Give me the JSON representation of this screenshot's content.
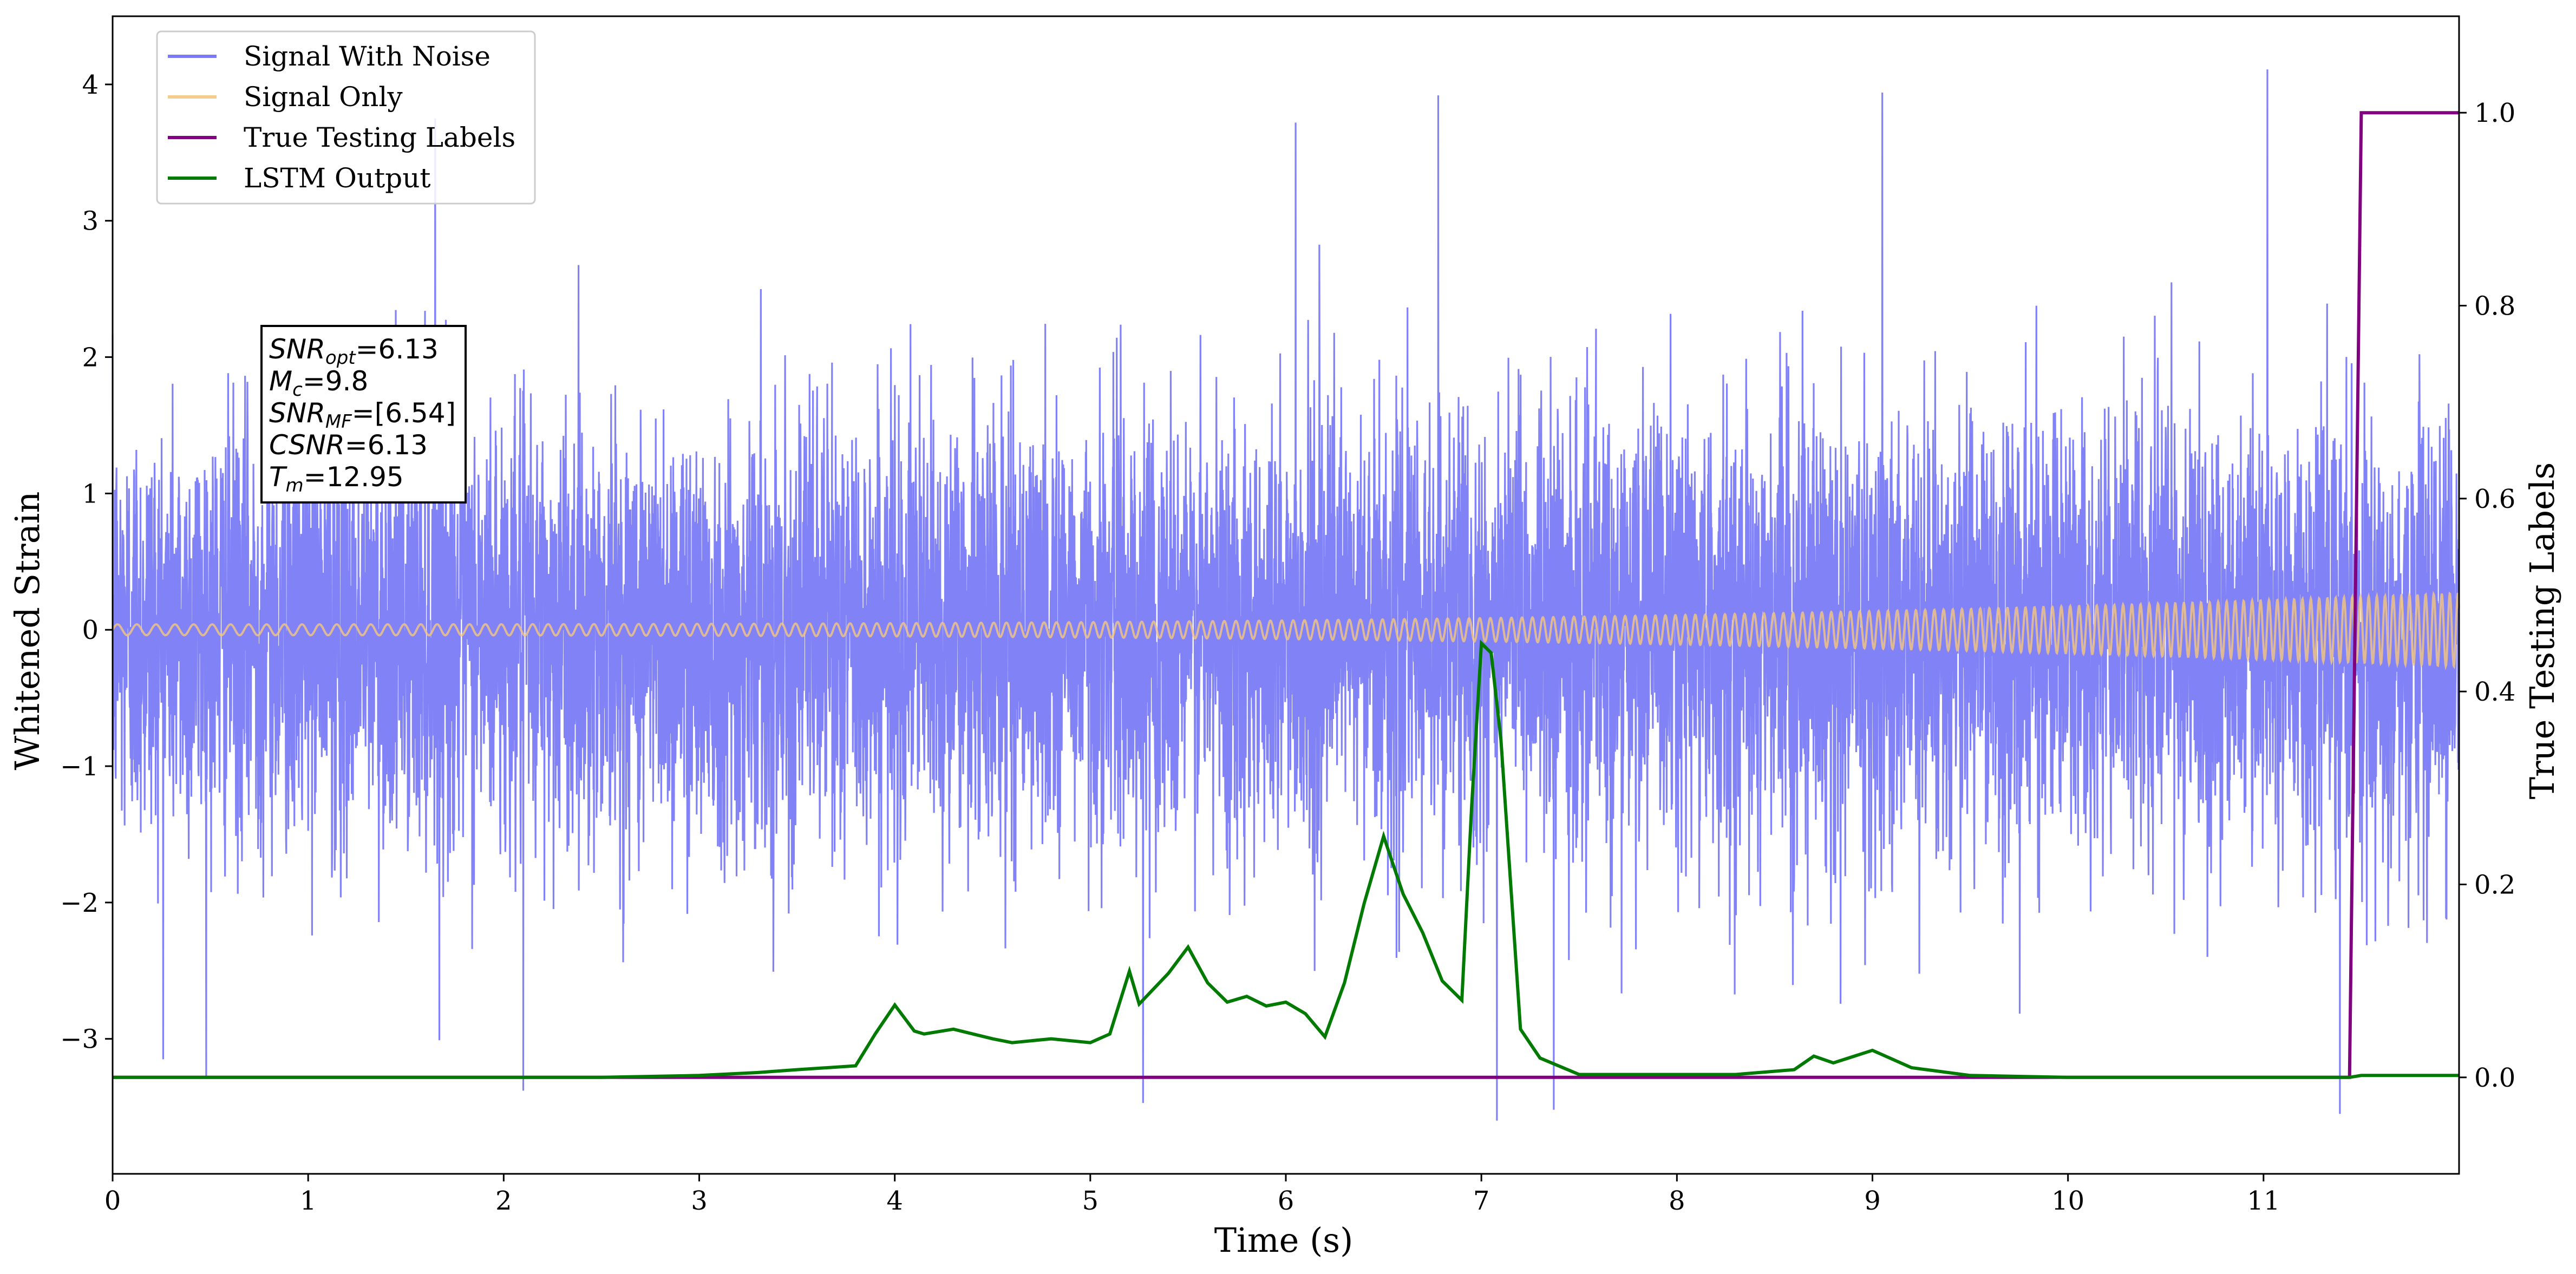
{
  "chart_data": {
    "type": "line",
    "xlabel": "Time (s)",
    "ylabel": "Whitened Strain",
    "y2label": "True Testing Labels",
    "xlim": [
      0,
      12.0
    ],
    "ylim": [
      -3.99,
      4.5
    ],
    "y2lim": [
      -0.1,
      1.1
    ],
    "x_ticks": [
      0,
      1,
      2,
      3,
      4,
      5,
      6,
      7,
      8,
      9,
      10,
      11
    ],
    "y_ticks": [
      -3,
      -2,
      -1,
      0,
      1,
      2,
      3,
      4
    ],
    "y_tick_labels": [
      "−3",
      "−2",
      "−1",
      "0",
      "1",
      "2",
      "3",
      "4"
    ],
    "y2_ticks": [
      0.0,
      0.2,
      0.4,
      0.6,
      0.8,
      1.0
    ],
    "y2_tick_labels": [
      "0.0",
      "0.2",
      "0.4",
      "0.6",
      "0.8",
      "1.0"
    ],
    "legend_placement": "upper-left",
    "grid": false,
    "colors": {
      "signal_with_noise": "#7b7bf7",
      "signal_only": "#f5c77e",
      "true_labels": "#800080",
      "lstm_output": "#007a00"
    },
    "series": [
      {
        "name": "Signal With Noise",
        "axis": "left",
        "description_range": [
          -3.6,
          4.1
        ],
        "peaks": [
          {
            "x": 1.65,
            "y": 3.75
          },
          {
            "x": 6.05,
            "y": 3.72
          },
          {
            "x": 6.78,
            "y": 3.92
          },
          {
            "x": 9.05,
            "y": 3.94
          },
          {
            "x": 11.02,
            "y": 4.11
          },
          {
            "x": 2.1,
            "y": -3.38
          },
          {
            "x": 5.27,
            "y": -3.47
          },
          {
            "x": 7.08,
            "y": -3.6
          },
          {
            "x": 7.37,
            "y": -3.52
          },
          {
            "x": 11.39,
            "y": -3.55
          }
        ]
      },
      {
        "name": "Signal Only",
        "axis": "left",
        "amplitude_start": 0.04,
        "amplitude_end": 0.27
      },
      {
        "name": "True Testing  Labels",
        "axis": "right",
        "x": [
          0,
          11.44,
          11.5,
          12.0
        ],
        "y": [
          0.0,
          0.0,
          1.0,
          1.0
        ]
      },
      {
        "name": "LSTM Output",
        "axis": "right",
        "x": [
          0,
          0.5,
          1,
          2,
          2.5,
          3,
          3.3,
          3.5,
          3.8,
          3.9,
          4.0,
          4.1,
          4.15,
          4.3,
          4.5,
          4.6,
          4.8,
          5.0,
          5.1,
          5.2,
          5.25,
          5.4,
          5.5,
          5.6,
          5.7,
          5.8,
          5.9,
          6.0,
          6.1,
          6.2,
          6.3,
          6.4,
          6.5,
          6.55,
          6.6,
          6.7,
          6.8,
          6.9,
          6.95,
          7.0,
          7.05,
          7.1,
          7.2,
          7.3,
          7.5,
          7.8,
          8.0,
          8.3,
          8.6,
          8.7,
          8.8,
          9.0,
          9.2,
          9.5,
          10.0,
          10.5,
          11.0,
          11.44,
          11.5,
          12.0
        ],
        "y": [
          0.0,
          0.0,
          0.0,
          0.0,
          0.0,
          0.002,
          0.005,
          0.008,
          0.012,
          0.045,
          0.075,
          0.048,
          0.045,
          0.05,
          0.04,
          0.036,
          0.04,
          0.036,
          0.045,
          0.11,
          0.076,
          0.108,
          0.135,
          0.098,
          0.078,
          0.084,
          0.074,
          0.078,
          0.066,
          0.042,
          0.098,
          0.18,
          0.25,
          0.22,
          0.19,
          0.15,
          0.1,
          0.08,
          0.28,
          0.45,
          0.44,
          0.35,
          0.05,
          0.02,
          0.003,
          0.003,
          0.003,
          0.003,
          0.008,
          0.022,
          0.015,
          0.028,
          0.01,
          0.002,
          0.0,
          0.0,
          0.0,
          0.0,
          0.002,
          0.002
        ]
      }
    ],
    "legend": [
      "Signal With Noise",
      "Signal Only",
      "True Testing  Labels",
      "LSTM Output"
    ],
    "annotation": {
      "lines": [
        {
          "main": "SNR",
          "sub": "opt",
          "value": "=6.13"
        },
        {
          "main": "M",
          "sub": "c",
          "value": "=9.8"
        },
        {
          "main": "SNR",
          "sub": "MF",
          "value": "=[6.54]"
        },
        {
          "main": "CSNR",
          "sub": "",
          "value": "=6.13"
        },
        {
          "main": "T",
          "sub": "m",
          "value": "=12.95"
        }
      ]
    }
  }
}
